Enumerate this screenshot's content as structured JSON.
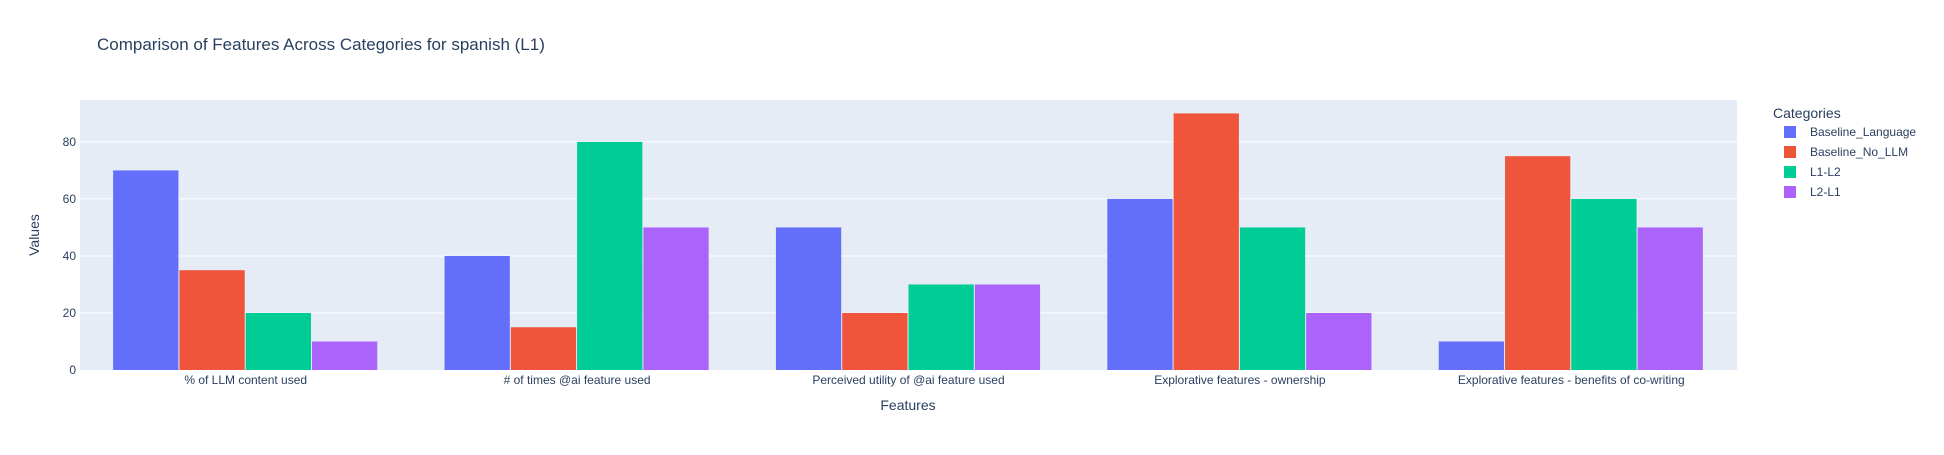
{
  "chart_data": {
    "type": "bar",
    "title": "Comparison of Features Across Categories for spanish (L1)",
    "xlabel": "Features",
    "ylabel": "Values",
    "ylim": [
      0,
      94.7
    ],
    "yticks": [
      0,
      20,
      40,
      60,
      80
    ],
    "grid": true,
    "legend_title": "Categories",
    "legend_position": "top-right",
    "categories": [
      "% of LLM content used",
      "# of times @ai feature used",
      "Perceived utility of @ai feature used",
      "Explorative features - ownership",
      "Explorative features - benefits of co-writing"
    ],
    "series": [
      {
        "name": "Baseline_Language",
        "color": "#636efa",
        "values": [
          70,
          40,
          50,
          60,
          10
        ]
      },
      {
        "name": "Baseline_No_LLM",
        "color": "#ef553b",
        "values": [
          35,
          15,
          20,
          90,
          75
        ]
      },
      {
        "name": "L1-L2",
        "color": "#00cc96",
        "values": [
          20,
          80,
          30,
          50,
          60
        ]
      },
      {
        "name": "L2-L1",
        "color": "#ab63fa",
        "values": [
          10,
          50,
          30,
          20,
          50
        ]
      }
    ]
  },
  "colors": {
    "plot_background": "#e5ecf6",
    "gridline": "#ffffff",
    "text": "#2a3f5f"
  }
}
